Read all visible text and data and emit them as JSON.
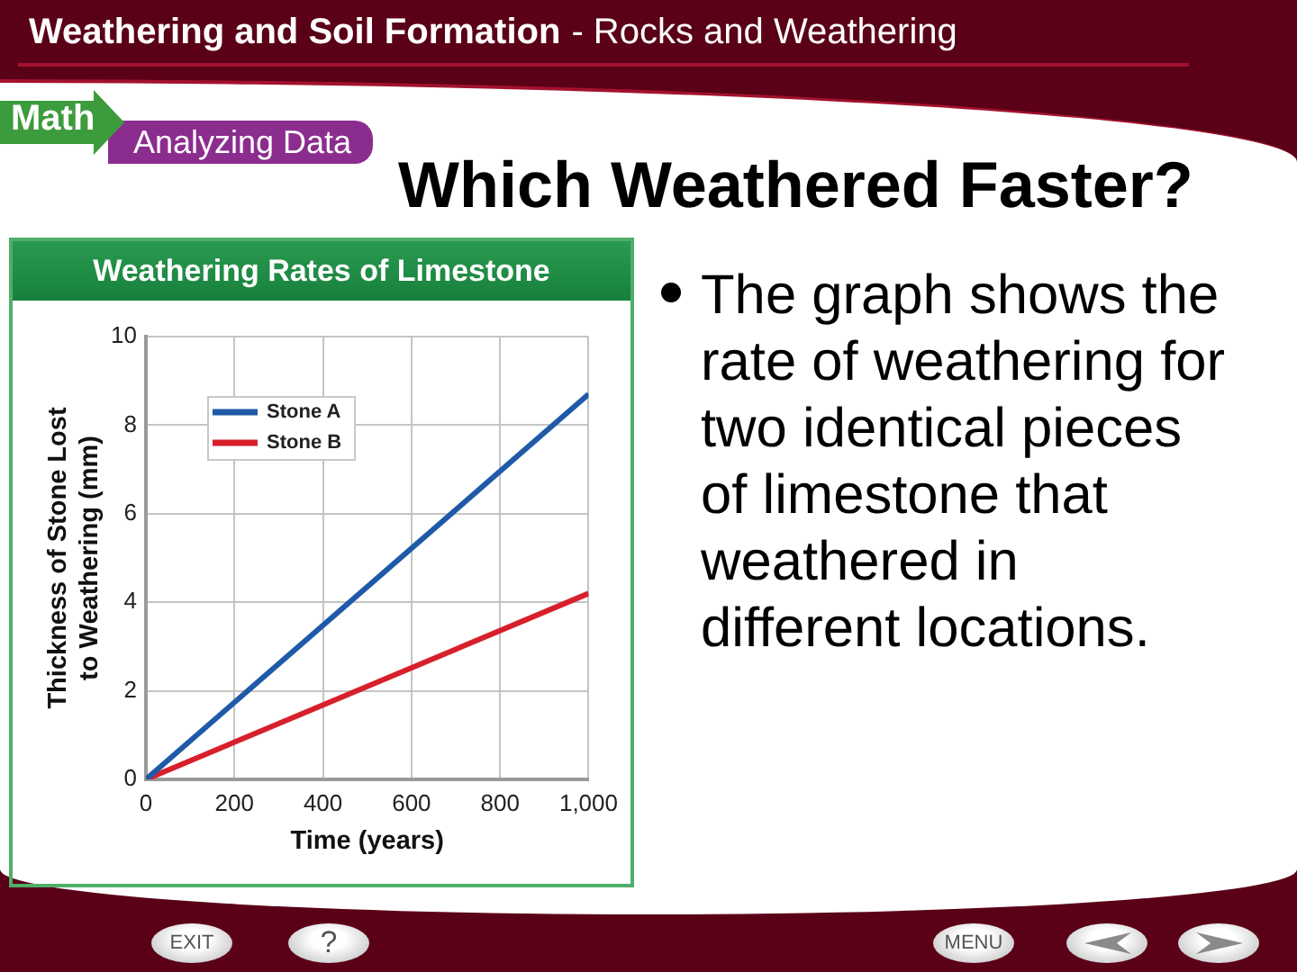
{
  "chart_data": {
    "type": "line",
    "title": "Weathering Rates of Limestone",
    "xlabel": "Time (years)",
    "ylabel": "Thickness of Stone Lost to Weathering (mm)",
    "x": [
      0,
      1000
    ],
    "series": [
      {
        "name": "Stone A",
        "color": "#1f5aa8",
        "values": [
          0,
          8.7
        ]
      },
      {
        "name": "Stone B",
        "color": "#d7202b",
        "values": [
          0,
          4.2
        ]
      }
    ],
    "xlim": [
      0,
      1000
    ],
    "ylim": [
      0,
      10
    ],
    "xticks": [
      0,
      200,
      400,
      600,
      800,
      {
        "value": 1000,
        "label": "1,000"
      }
    ],
    "yticks": [
      0,
      2,
      4,
      6,
      8,
      10
    ],
    "grid": true,
    "legend": "top left",
    "marker": "none",
    "line_style": "solid",
    "annotations": [
      "Weathering and Soil Formation",
      "- Rocks and Weathering",
      "Math",
      "Analyzing Data",
      "Which Weathered Faster?",
      "The graph shows the rate of weathering for two identical pieces of limestone that weathered in different locations.",
      "EXIT",
      "?",
      "MENU"
    ]
  }
}
